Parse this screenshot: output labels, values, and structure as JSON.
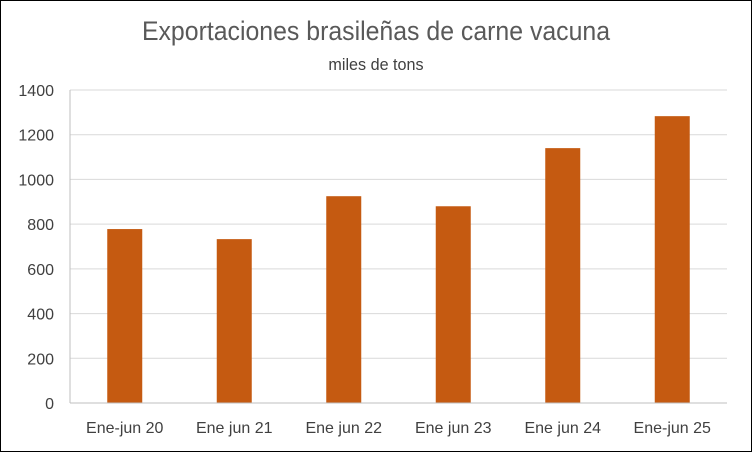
{
  "chart_data": {
    "type": "bar",
    "title": "Exportaciones brasileñas  de carne vacuna",
    "subtitle": "miles de tons",
    "categories": [
      "Ene-jun 20",
      "Ene jun 21",
      "Ene jun 22",
      "Ene jun 23",
      "Ene jun 24",
      "Ene-jun 25"
    ],
    "values": [
      778,
      733,
      925,
      880,
      1140,
      1283
    ],
    "ylim": [
      0,
      1400
    ],
    "yticks": [
      "0",
      "200",
      "400",
      "600",
      "800",
      "1000",
      "1200",
      "1400"
    ],
    "grid": true,
    "legend": "none",
    "bar_color": "#C55A11",
    "grid_color": "#D9D9D9"
  }
}
